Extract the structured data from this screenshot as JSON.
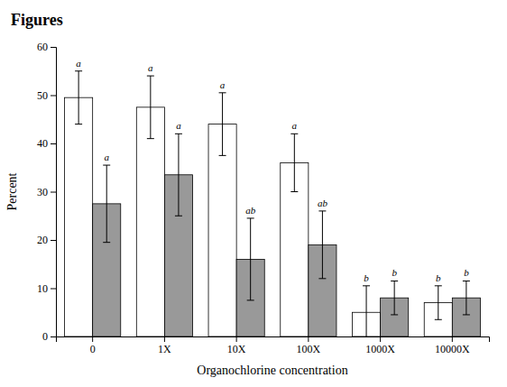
{
  "chart_data": {
    "type": "bar",
    "title": "Figures",
    "xlabel": "Organochlorine concentration",
    "ylabel": "Percent",
    "categories": [
      "0",
      "1X",
      "10X",
      "100X",
      "1000X",
      "10000X"
    ],
    "series": [
      {
        "color": "#ffffff",
        "values": [
          49.5,
          47.5,
          44.0,
          36.0,
          5.0,
          7.0
        ],
        "errors": [
          5.5,
          6.5,
          6.5,
          6.0,
          5.5,
          3.5
        ],
        "labels": [
          "a",
          "a",
          "a",
          "a",
          "b",
          "b"
        ]
      },
      {
        "color": "#999999",
        "values": [
          27.5,
          33.5,
          16.0,
          19.0,
          8.0,
          8.0
        ],
        "errors": [
          8.0,
          8.5,
          8.5,
          7.0,
          3.5,
          3.5
        ],
        "labels": [
          "a",
          "a",
          "ab",
          "ab",
          "b",
          "b"
        ]
      }
    ],
    "ylim": [
      0,
      60
    ],
    "yticks": [
      0,
      10,
      20,
      30,
      40,
      50,
      60
    ],
    "grid": false
  }
}
